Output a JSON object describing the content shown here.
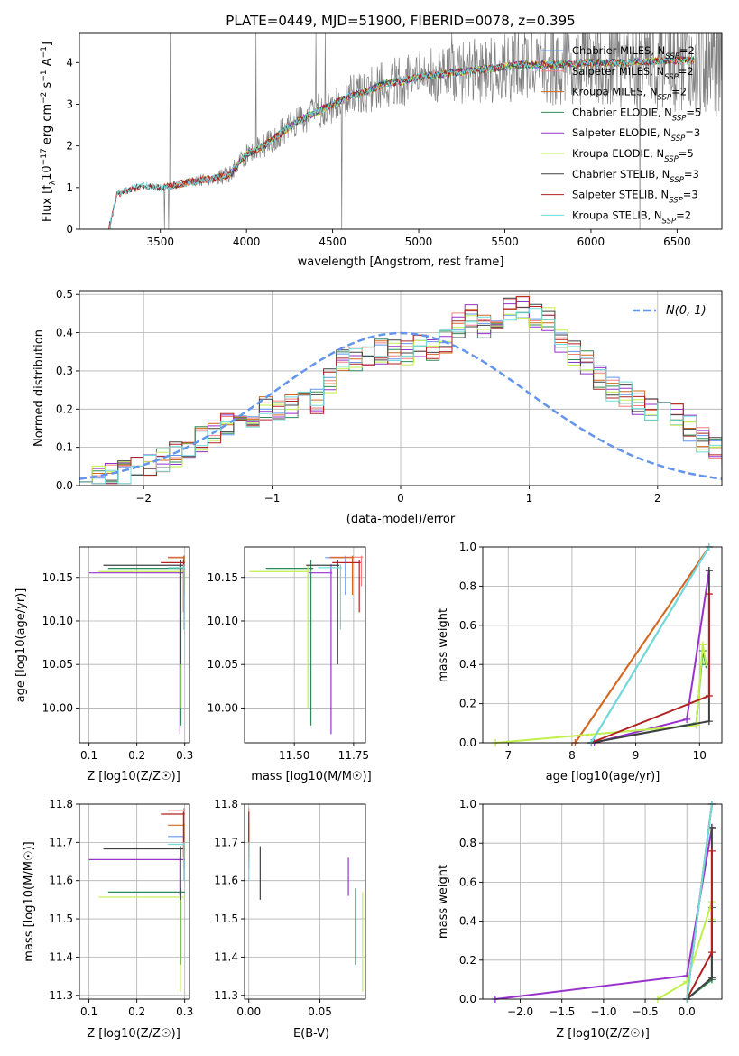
{
  "chart_data": [
    {
      "id": "spectrum",
      "type": "line",
      "title": "PLATE=0449, MJD=51900, FIBERID=0078, z=0.395",
      "xlabel": "wavelength [Angstrom, rest frame]",
      "ylabel": "Flux [fλ10⁻¹⁷ erg cm⁻² s⁻¹ A⁻¹]",
      "xlim": [
        3030,
        6760
      ],
      "ylim": [
        0,
        4.7
      ],
      "xticks": [
        3500,
        4000,
        4500,
        5000,
        5500,
        6000,
        6500
      ],
      "yticks": [
        0,
        1,
        2,
        3,
        4
      ],
      "grid": false,
      "legend_position": "top-right",
      "observed_color": "#808080",
      "model_anchor_wavelengths": [
        3200,
        3250,
        3400,
        3500,
        3700,
        3900,
        4000,
        4100,
        4200,
        4300,
        4400,
        4500,
        4600,
        4700,
        4800,
        4900,
        5000,
        5200,
        5400,
        5600,
        5800,
        6000,
        6200,
        6400,
        6600
      ],
      "model_anchor_flux": [
        0.0,
        0.85,
        1.05,
        1.0,
        1.15,
        1.3,
        1.8,
        2.0,
        2.3,
        2.6,
        2.8,
        3.0,
        3.2,
        3.3,
        3.5,
        3.55,
        3.65,
        3.75,
        3.85,
        3.95,
        3.95,
        4.0,
        4.0,
        4.05,
        4.05
      ],
      "series": [
        {
          "name": "Chabrier MILES, N_SSP=2",
          "label_text": "Chabrier MILES, N",
          "label_sub": "SSP",
          "label_suffix": "=2",
          "color": "#6495ed",
          "start": 3530
        },
        {
          "name": "Salpeter MILES, N_SSP=2",
          "label_text": "Salpeter MILES, N",
          "label_sub": "SSP",
          "label_suffix": "=2",
          "color": "#f08080",
          "start": 3530
        },
        {
          "name": "Kroupa MILES, N_SSP=2",
          "label_text": "Kroupa MILES, N",
          "label_sub": "SSP",
          "label_suffix": "=2",
          "color": "#d2691e",
          "start": 3530
        },
        {
          "name": "Chabrier ELODIE, N_SSP=5",
          "label_text": "Chabrier ELODIE, N",
          "label_sub": "SSP",
          "label_suffix": "=5",
          "color": "#2e8b57",
          "start": 3900
        },
        {
          "name": "Salpeter ELODIE, N_SSP=3",
          "label_text": "Salpeter ELODIE, N",
          "label_sub": "SSP",
          "label_suffix": "=3",
          "color": "#9932cc",
          "start": 3900
        },
        {
          "name": "Kroupa ELODIE, N_SSP=5",
          "label_text": "Kroupa ELODIE, N",
          "label_sub": "SSP",
          "label_suffix": "=5",
          "color": "#c0f04a",
          "start": 3900
        },
        {
          "name": "Chabrier STELIB, N_SSP=3",
          "label_text": "Chabrier STELIB, N",
          "label_sub": "SSP",
          "label_suffix": "=3",
          "color": "#404040",
          "start": 3200
        },
        {
          "name": "Salpeter STELIB, N_SSP=3",
          "label_text": "Salpeter STELIB, N",
          "label_sub": "SSP",
          "label_suffix": "=3",
          "color": "#b22222",
          "start": 3200
        },
        {
          "name": "Kroupa STELIB, N_SSP=2",
          "label_text": "Kroupa STELIB, N",
          "label_sub": "SSP",
          "label_suffix": "=2",
          "color": "#70dbdb",
          "start": 3200
        }
      ]
    },
    {
      "id": "residuals",
      "type": "line",
      "xlabel": "(data-model)/error",
      "ylabel": "Normed distribution",
      "xlim": [
        -2.5,
        2.5
      ],
      "ylim": [
        0,
        0.51
      ],
      "xticks": [
        -2,
        -1,
        0,
        1,
        2
      ],
      "yticks": [
        0.0,
        0.1,
        0.2,
        0.3,
        0.4,
        0.5
      ],
      "grid": true,
      "legend_position": "top-right",
      "legend": "N(0, 1)",
      "gaussian_color": "#6495ed",
      "bin_width": 0.1,
      "bin_start": -2.5,
      "base_hist": [
        0.02,
        0.02,
        0.025,
        0.03,
        0.04,
        0.05,
        0.065,
        0.08,
        0.1,
        0.12,
        0.14,
        0.155,
        0.17,
        0.185,
        0.2,
        0.2,
        0.205,
        0.21,
        0.22,
        0.27,
        0.32,
        0.33,
        0.34,
        0.35,
        0.35,
        0.35,
        0.36,
        0.36,
        0.38,
        0.42,
        0.44,
        0.42,
        0.44,
        0.46,
        0.46,
        0.44,
        0.44,
        0.38,
        0.35,
        0.32,
        0.28,
        0.25,
        0.24,
        0.22,
        0.2,
        0.19,
        0.18,
        0.15,
        0.12,
        0.1,
        0.08,
        0.07,
        0.06,
        0.05,
        0.045
      ]
    },
    {
      "id": "age-vs-Z",
      "type": "scatter",
      "xlabel": "Z [log10(Z/Z☉)]",
      "ylabel": "age  [log10(age/yr)]",
      "xlim": [
        0.08,
        0.31
      ],
      "ylim": [
        9.96,
        10.185
      ],
      "xticks": [
        0.1,
        0.2,
        0.3
      ],
      "yticks": [
        10.0,
        10.05,
        10.1,
        10.15
      ],
      "grid": true
    },
    {
      "id": "age-vs-mass",
      "type": "scatter",
      "xlabel": "mass [log10(M/M☉)]",
      "xlim": [
        11.29,
        11.8
      ],
      "ylim": [
        9.96,
        10.185
      ],
      "xticks": [
        11.5,
        11.75
      ],
      "yticks": [
        10.0,
        10.05,
        10.1,
        10.15
      ],
      "grid": true
    },
    {
      "id": "weight-vs-age",
      "type": "line",
      "xlabel": "age  [log10(age/yr)]",
      "ylabel": "mass weight",
      "xlim": [
        6.6,
        10.35
      ],
      "ylim": [
        0,
        1.0
      ],
      "xticks": [
        7,
        8,
        9,
        10
      ],
      "yticks": [
        0.0,
        0.2,
        0.4,
        0.6,
        0.8,
        1.0
      ],
      "grid": true
    },
    {
      "id": "mass-vs-Z",
      "type": "scatter",
      "xlabel": "Z [log10(Z/Z☉)]",
      "ylabel": "mass [log10(M/M☉)]",
      "xlim": [
        0.08,
        0.31
      ],
      "ylim": [
        11.29,
        11.8
      ],
      "xticks": [
        0.1,
        0.2,
        0.3
      ],
      "yticks": [
        11.3,
        11.4,
        11.5,
        11.6,
        11.7,
        11.8
      ],
      "grid": true
    },
    {
      "id": "mass-vs-EBV",
      "type": "scatter",
      "xlabel": "E(B-V)",
      "xlim": [
        -0.003,
        0.082
      ],
      "ylim": [
        11.29,
        11.8
      ],
      "xticks": [
        0.0,
        0.05
      ],
      "yticks": [
        11.3,
        11.4,
        11.5,
        11.6,
        11.7,
        11.8
      ],
      "grid": true
    },
    {
      "id": "weight-vs-Z",
      "type": "line",
      "xlabel": "Z [log10(Z/Z☉)]",
      "ylabel": "mass weight",
      "xlim": [
        -2.45,
        0.42
      ],
      "ylim": [
        0,
        1.0
      ],
      "xticks": [
        -2.0,
        -1.5,
        -1.0,
        -0.5,
        0.0
      ],
      "yticks": [
        0.0,
        0.2,
        0.4,
        0.6,
        0.8,
        1.0
      ],
      "grid": true
    }
  ],
  "fits": [
    {
      "name": "Chabrier MILES",
      "color": "#6495ed",
      "Z": [
        0.265,
        0.3
      ],
      "age": [
        10.13,
        10.175
      ],
      "mass": [
        11.63,
        11.72
      ],
      "ebv": 0.0,
      "ages": [
        8.3,
        10.15
      ],
      "w": [
        0.0,
        1.0
      ],
      "Zs": [
        0.0,
        0.3
      ]
    },
    {
      "name": "Salpeter MILES",
      "color": "#f08080",
      "Z": [
        0.265,
        0.3
      ],
      "age": [
        10.14,
        10.175
      ],
      "mass": [
        11.65,
        11.79
      ],
      "ebv": 0.0,
      "ages": [
        8.05,
        10.15
      ],
      "w": [
        0.0,
        1.0
      ],
      "Zs": [
        0.0,
        0.3
      ]
    },
    {
      "name": "Kroupa MILES",
      "color": "#d2691e",
      "Z": [
        0.265,
        0.3
      ],
      "age": [
        10.13,
        10.175
      ],
      "mass": [
        11.65,
        11.75
      ],
      "ebv": 0.0,
      "ages": [
        8.05,
        10.15
      ],
      "w": [
        0.0,
        1.0
      ],
      "Zs": [
        0.0,
        0.3
      ]
    },
    {
      "name": "Chabrier ELODIE",
      "color": "#2e8b57",
      "Z": [
        0.14,
        0.3
      ],
      "age": [
        9.98,
        10.17
      ],
      "mass": [
        11.38,
        11.58
      ],
      "ebv": 0.075,
      "ages": [
        8.3,
        9.95,
        10.05,
        10.1
      ],
      "w": [
        0.0,
        0.1,
        0.47,
        0.4
      ],
      "Zs": [
        0.0,
        0.3,
        0.3,
        0.3
      ]
    },
    {
      "name": "Salpeter ELODIE",
      "color": "#9932cc",
      "Z": [
        0.1,
        0.3
      ],
      "age": [
        9.97,
        10.165
      ],
      "mass": [
        11.56,
        11.66
      ],
      "ebv": 0.07,
      "ages": [
        8.35,
        9.8,
        10.15
      ],
      "w": [
        0.0,
        0.12,
        0.88
      ],
      "Zs": [
        -2.3,
        0.0,
        0.3
      ]
    },
    {
      "name": "Kroupa ELODIE",
      "color": "#c0f04a",
      "Z": [
        0.12,
        0.3
      ],
      "age": [
        10.0,
        10.165
      ],
      "mass": [
        11.31,
        11.57
      ],
      "ebv": 0.08,
      "ages": [
        6.8,
        9.95,
        10.05,
        10.1
      ],
      "w": [
        0.0,
        0.09,
        0.5,
        0.41
      ],
      "Zs": [
        -0.35,
        0.0,
        0.3,
        0.3
      ]
    },
    {
      "name": "Chabrier STELIB",
      "color": "#404040",
      "Z": [
        0.13,
        0.3
      ],
      "age": [
        10.05,
        10.17
      ],
      "mass": [
        11.55,
        11.69
      ],
      "ebv": 0.008,
      "ages": [
        8.3,
        10.15,
        10.15
      ],
      "w": [
        0.0,
        0.11,
        0.88
      ],
      "Zs": [
        0.0,
        0.3,
        0.3
      ]
    },
    {
      "name": "Salpeter STELIB",
      "color": "#b22222",
      "Z": [
        0.25,
        0.3
      ],
      "age": [
        10.11,
        10.17
      ],
      "mass": [
        11.66,
        11.78
      ],
      "ebv": 0.0,
      "ages": [
        8.3,
        10.15,
        10.15
      ],
      "w": [
        0.0,
        0.24,
        0.76
      ],
      "Zs": [
        0.0,
        0.3,
        0.3
      ]
    },
    {
      "name": "Kroupa STELIB",
      "color": "#70dbdb",
      "Z": [
        0.265,
        0.3
      ],
      "age": [
        10.09,
        10.165
      ],
      "mass": [
        11.6,
        11.7
      ],
      "ebv": 0.0,
      "ages": [
        8.3,
        10.15
      ],
      "w": [
        0.0,
        1.0
      ],
      "Zs": [
        0.0,
        0.3
      ]
    }
  ]
}
